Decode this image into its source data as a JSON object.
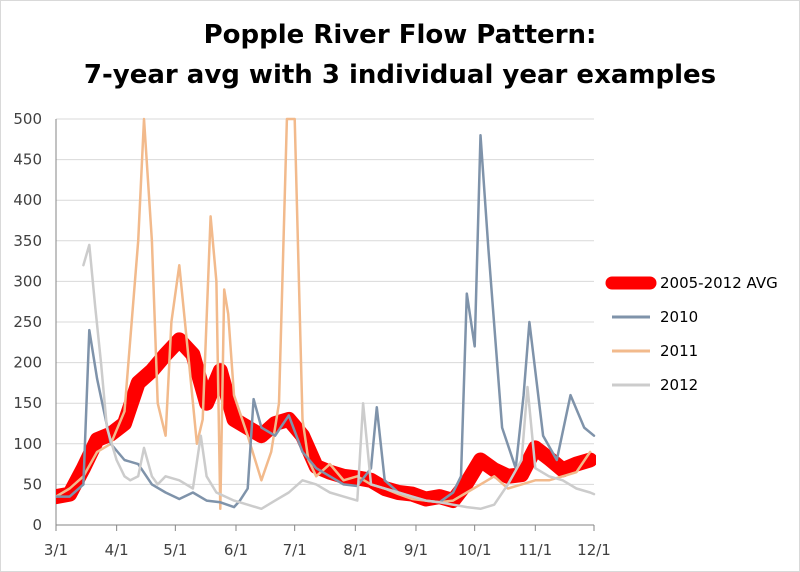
{
  "chart_data": {
    "type": "line",
    "title": "Popple River Flow Pattern:",
    "subtitle": "7-year avg with 3 individual year examples",
    "xlabel": "",
    "ylabel": "",
    "ylim": [
      0,
      500
    ],
    "yticks": [
      "0",
      "50",
      "100",
      "150",
      "200",
      "250",
      "300",
      "350",
      "400",
      "450",
      "500"
    ],
    "xticks": [
      "3/1",
      "4/1",
      "5/1",
      "6/1",
      "7/1",
      "8/1",
      "9/1",
      "10/1",
      "11/1",
      "12/1"
    ],
    "grid": "horizontal",
    "legend_position": "right",
    "series": [
      {
        "name": "2005-2012 AVG",
        "color": "#ff0000",
        "x": [
          "3/1",
          "3/8",
          "3/15",
          "3/22",
          "3/29",
          "4/5",
          "4/12",
          "4/19",
          "4/26",
          "5/3",
          "5/10",
          "5/17",
          "5/24",
          "5/31",
          "6/7",
          "6/14",
          "6/21",
          "6/28",
          "7/5",
          "7/12",
          "7/19",
          "7/26",
          "8/2",
          "8/9",
          "8/16",
          "8/23",
          "8/30",
          "9/6",
          "9/13",
          "9/20",
          "9/27",
          "10/4",
          "10/11",
          "10/18",
          "10/25",
          "11/1",
          "11/8",
          "11/15",
          "11/22",
          "11/29"
        ],
        "values": [
          35,
          38,
          70,
          105,
          112,
          125,
          175,
          190,
          210,
          228,
          210,
          150,
          190,
          130,
          120,
          110,
          125,
          130,
          110,
          72,
          65,
          60,
          58,
          55,
          45,
          40,
          38,
          32,
          35,
          30,
          52,
          80,
          68,
          60,
          62,
          95,
          82,
          68,
          75,
          80
        ]
      },
      {
        "name": "2010",
        "color": "#7f93aa",
        "x": [
          "3/1",
          "3/8",
          "3/15",
          "3/18",
          "3/22",
          "3/29",
          "4/5",
          "4/12",
          "4/19",
          "4/26",
          "5/3",
          "5/10",
          "5/17",
          "5/24",
          "5/31",
          "6/3",
          "6/7",
          "6/10",
          "6/14",
          "6/21",
          "6/28",
          "7/5",
          "7/12",
          "7/19",
          "7/26",
          "8/2",
          "8/9",
          "8/12",
          "8/16",
          "8/23",
          "8/30",
          "9/6",
          "9/13",
          "9/20",
          "9/24",
          "9/27",
          "10/1",
          "10/4",
          "10/8",
          "10/15",
          "10/22",
          "10/26",
          "10/29",
          "11/5",
          "11/12",
          "11/19",
          "11/26",
          "12/1"
        ],
        "values": [
          35,
          35,
          50,
          240,
          180,
          100,
          80,
          75,
          50,
          40,
          32,
          40,
          30,
          28,
          22,
          30,
          45,
          155,
          120,
          110,
          135,
          90,
          70,
          60,
          50,
          48,
          70,
          145,
          55,
          40,
          35,
          30,
          28,
          40,
          60,
          285,
          220,
          480,
          340,
          120,
          70,
          160,
          250,
          110,
          80,
          160,
          120,
          110
        ]
      },
      {
        "name": "2011",
        "color": "#f2ba8c",
        "x": [
          "3/1",
          "3/8",
          "3/15",
          "3/22",
          "3/29",
          "4/5",
          "4/12",
          "4/15",
          "4/19",
          "4/22",
          "4/26",
          "4/29",
          "5/3",
          "5/8",
          "5/12",
          "5/15",
          "5/19",
          "5/22",
          "5/24",
          "5/26",
          "5/28",
          "5/31",
          "6/7",
          "6/14",
          "6/19",
          "6/23",
          "6/27",
          "7/1",
          "7/5",
          "7/8",
          "7/12",
          "7/19",
          "7/26",
          "8/2",
          "8/9",
          "8/16",
          "8/23",
          "8/30",
          "9/6",
          "9/13",
          "9/20",
          "9/27",
          "10/4",
          "10/11",
          "10/18",
          "10/25",
          "11/1",
          "11/8",
          "11/15",
          "11/22",
          "11/29"
        ],
        "values": [
          35,
          45,
          60,
          90,
          100,
          140,
          350,
          500,
          350,
          150,
          110,
          250,
          320,
          200,
          100,
          130,
          380,
          300,
          20,
          290,
          260,
          160,
          110,
          55,
          90,
          150,
          500,
          500,
          130,
          80,
          60,
          75,
          55,
          60,
          50,
          45,
          38,
          32,
          30,
          28,
          30,
          40,
          50,
          60,
          45,
          50,
          55,
          55,
          60,
          65,
          90
        ]
      },
      {
        "name": "2012",
        "color": "#cccccc",
        "x": [
          "3/15",
          "3/18",
          "3/21",
          "3/24",
          "3/27",
          "4/1",
          "4/5",
          "4/8",
          "4/12",
          "4/15",
          "4/19",
          "4/22",
          "4/26",
          "5/3",
          "5/10",
          "5/14",
          "5/17",
          "5/22",
          "5/31",
          "6/7",
          "6/14",
          "6/21",
          "6/28",
          "7/5",
          "7/12",
          "7/19",
          "7/26",
          "8/2",
          "8/5",
          "8/9",
          "8/16",
          "8/23",
          "8/30",
          "9/6",
          "9/13",
          "9/20",
          "9/27",
          "10/4",
          "10/11",
          "10/18",
          "10/25",
          "10/28",
          "11/1",
          "11/8",
          "11/15",
          "11/22",
          "11/29",
          "12/1"
        ],
        "values": [
          320,
          345,
          270,
          200,
          120,
          80,
          60,
          55,
          60,
          95,
          60,
          50,
          60,
          55,
          45,
          110,
          60,
          40,
          30,
          25,
          20,
          30,
          40,
          55,
          50,
          40,
          35,
          30,
          150,
          50,
          45,
          40,
          35,
          30,
          28,
          25,
          22,
          20,
          25,
          50,
          80,
          170,
          70,
          60,
          55,
          45,
          40,
          38
        ]
      }
    ]
  }
}
